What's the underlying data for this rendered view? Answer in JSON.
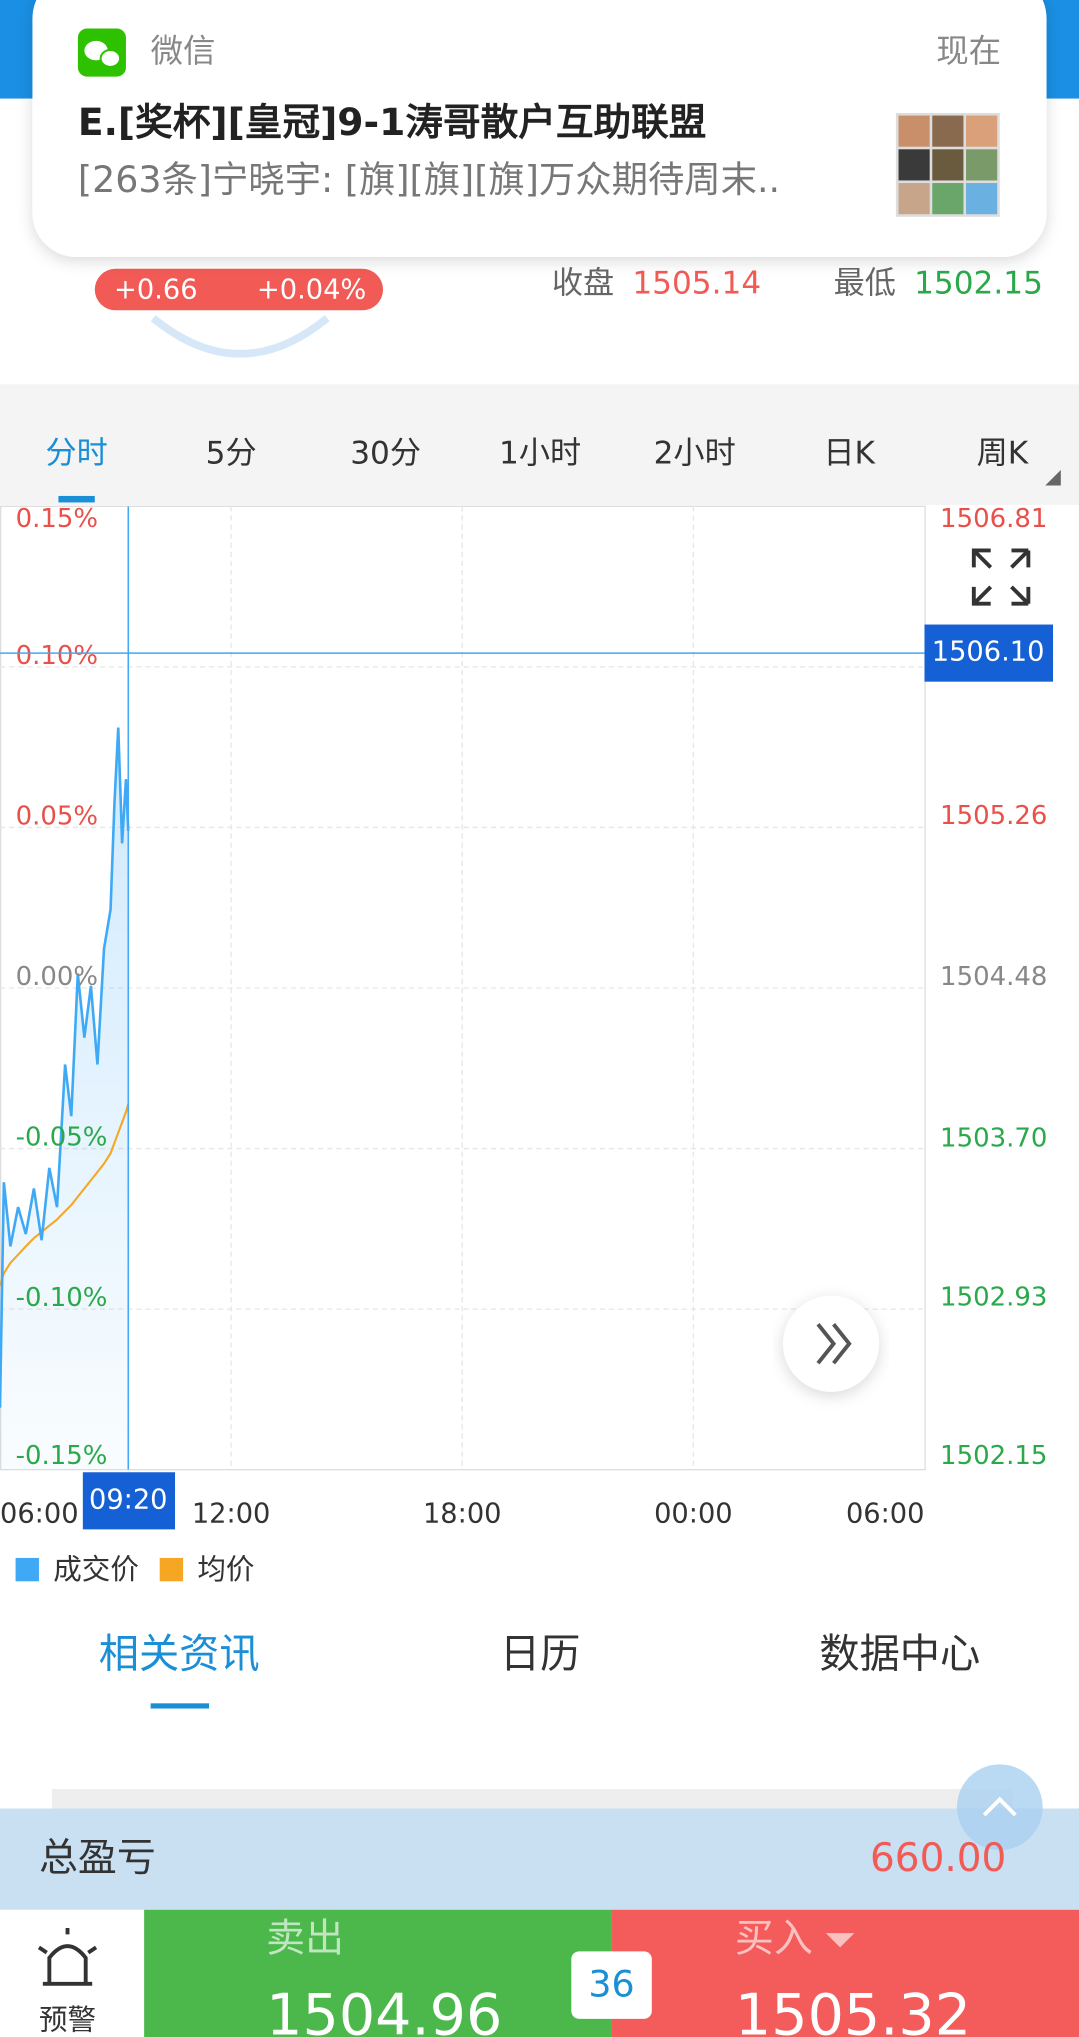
{
  "notification": {
    "app": "微信",
    "time": "现在",
    "title": "E.[奖杯][皇冠]9-1涛哥散户互助联盟",
    "message": "[263条]宁晓宇: [旗][旗][旗]万众期待周末.."
  },
  "header": {
    "change": "+0.66",
    "change_pct": "+0.04%",
    "close_label": "收盘",
    "close": "1505.14",
    "low_label": "最低",
    "low": "1502.15"
  },
  "period_tabs": [
    "分时",
    "5分",
    "30分",
    "1小时",
    "2小时",
    "日K",
    "周K"
  ],
  "chart_data": {
    "type": "line",
    "x": [
      6,
      6.1,
      6.27,
      6.47,
      6.67,
      6.88,
      7.08,
      7.28,
      7.48,
      7.69,
      7.85,
      8.02,
      8.19,
      8.36,
      8.53,
      8.7,
      8.87,
      8.97,
      9.07,
      9.17,
      9.27,
      9.33
    ],
    "series": [
      {
        "name": "成交价",
        "color": "#3fa9f5",
        "values": [
          1502.45,
          1503.54,
          1503.23,
          1503.42,
          1503.29,
          1503.51,
          1503.26,
          1503.61,
          1503.42,
          1504.11,
          1503.86,
          1504.55,
          1504.24,
          1504.49,
          1504.11,
          1504.67,
          1504.86,
          1505.37,
          1505.74,
          1505.18,
          1505.49,
          1505.24
        ]
      },
      {
        "name": "均价",
        "color": "#f5a623",
        "values": [
          1503.04,
          1503.1,
          1503.15,
          1503.19,
          1503.23,
          1503.27,
          1503.3,
          1503.33,
          1503.36,
          1503.4,
          1503.43,
          1503.47,
          1503.51,
          1503.55,
          1503.59,
          1503.63,
          1503.68,
          1503.73,
          1503.78,
          1503.83,
          1503.88,
          1503.92
        ]
      }
    ],
    "ylim": [
      1502.15,
      1506.81
    ],
    "yticks": [
      1506.81,
      1505.26,
      1504.48,
      {
        "value": 1503.7,
        "label": "1503.70"
      },
      1502.93,
      1502.15
    ],
    "y2lim": [
      -0.15,
      0.15
    ],
    "y2ticks": [
      {
        "value": 0.15,
        "label": "0.15%"
      },
      {
        "value": 0.1,
        "label": "0.10%"
      },
      {
        "value": 0.05,
        "label": "0.05%"
      },
      {
        "value": 0,
        "label": "0.00%"
      },
      {
        "value": -0.05,
        "label": "-0.05%"
      },
      {
        "value": -0.1,
        "label": "-0.10%"
      },
      {
        "value": -0.15,
        "label": "-0.15%"
      }
    ],
    "xlim": [
      6,
      30
    ],
    "xticks": [
      {
        "value": 6,
        "label": "06:00"
      },
      {
        "value": 12,
        "label": "12:00"
      },
      {
        "value": 18,
        "label": "18:00"
      },
      {
        "value": 24,
        "label": "00:00"
      },
      {
        "value": 30,
        "label": "06:00"
      }
    ],
    "crosshair_price": {
      "value": 1506.1,
      "label": "1506.10"
    },
    "crosshair_time": {
      "value": 9.33,
      "label": "09:20"
    },
    "grid": true
  },
  "info_tabs": [
    "相关资讯",
    "日历",
    "数据中心"
  ],
  "pnl": {
    "label": "总盈亏",
    "value": "660.00"
  },
  "footer": {
    "alert": "预警",
    "sell_label": "卖出",
    "sell_price": "1504.96",
    "spread": "36",
    "buy_label": "买入",
    "buy_price": "1505.32"
  }
}
